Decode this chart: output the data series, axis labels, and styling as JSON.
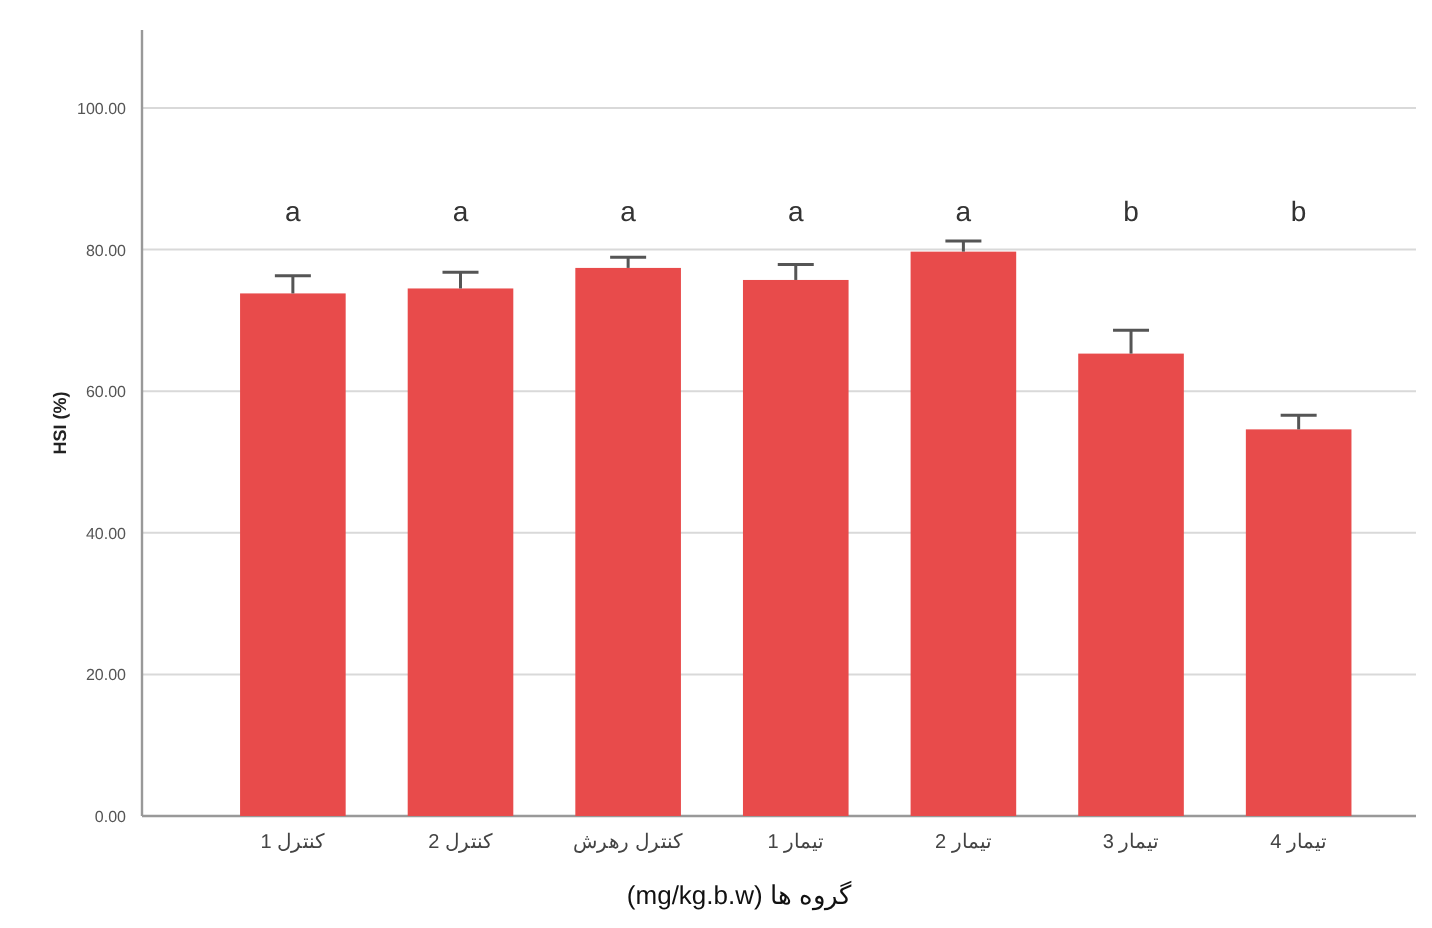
{
  "chart_data": {
    "type": "bar",
    "categories": [
      "کنترل 1",
      "کنترل 2",
      "کنترل رهرش",
      "تیمار 1",
      "تیمار 2",
      "تیمار 3",
      "تیمار 4"
    ],
    "values": [
      73.8,
      74.5,
      77.4,
      75.7,
      79.7,
      65.3,
      54.6
    ],
    "errors": [
      [
        73.8,
        76.3
      ],
      [
        74.5,
        76.8
      ],
      [
        77.4,
        78.9
      ],
      [
        75.7,
        77.9
      ],
      [
        79.7,
        81.2
      ],
      [
        65.3,
        68.6
      ],
      [
        54.6,
        56.6
      ]
    ],
    "color": "#e84b4b",
    "ylabel": "HSI (%)",
    "xlabel": "گروه ها (mg/kg.b.w)",
    "ylim": [
      0,
      111
    ],
    "yticks": [
      {
        "value": 0,
        "label": "0.00"
      },
      {
        "value": 20,
        "label": "20.00"
      },
      {
        "value": 40,
        "label": "40.00"
      },
      {
        "value": 60,
        "label": "60.00"
      },
      {
        "value": 80,
        "label": "80.00"
      },
      {
        "value": 100,
        "label": "100.00"
      }
    ],
    "grid": "y",
    "annotations": [
      "a",
      "a",
      "a",
      "a",
      "a",
      "b",
      "b"
    ]
  }
}
